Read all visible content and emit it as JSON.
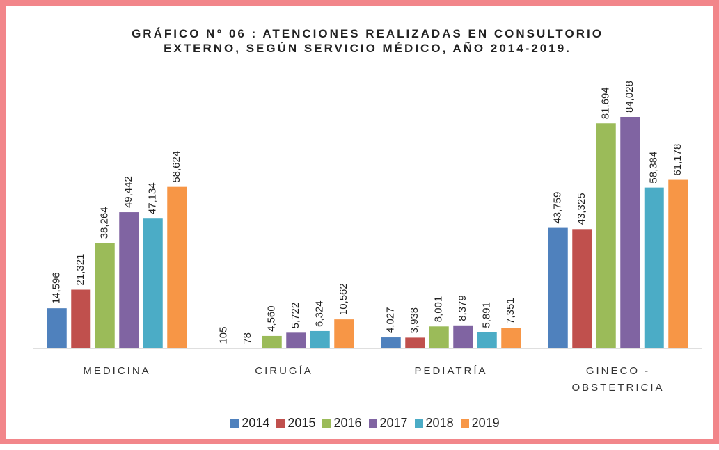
{
  "chart_data": {
    "type": "bar",
    "title": "GRÁFICO N° 06 : ATENCIONES REALIZADAS EN CONSULTORIO EXTERNO, SEGÚN SERVICIO MÉDICO, AÑO 2014-2019.",
    "categories": [
      "MEDICINA",
      "CIRUGÍA",
      "PEDIATRÍA",
      "GINECO - OBSTETRICIA"
    ],
    "series": [
      {
        "name": "2014",
        "color": "#4f81bd",
        "values": [
          14596,
          105,
          4027,
          43759
        ],
        "value_labels": [
          "14,596",
          "105",
          "4,027",
          "43,759"
        ]
      },
      {
        "name": "2015",
        "color": "#c0504d",
        "values": [
          21321,
          78,
          3938,
          43325
        ],
        "value_labels": [
          "21,321",
          "78",
          "3,938",
          "43,325"
        ]
      },
      {
        "name": "2016",
        "color": "#9bbb59",
        "values": [
          38264,
          4560,
          8001,
          81694
        ],
        "value_labels": [
          "38,264",
          "4,560",
          "8,001",
          "81,694"
        ]
      },
      {
        "name": "2017",
        "color": "#8064a2",
        "values": [
          49442,
          5722,
          8379,
          84028
        ],
        "value_labels": [
          "49,442",
          "5,722",
          "8,379",
          "84,028"
        ]
      },
      {
        "name": "2018",
        "color": "#4bacc6",
        "values": [
          47134,
          6324,
          5891,
          58384
        ],
        "value_labels": [
          "47,134",
          "6,324",
          "5,891",
          "58,384"
        ]
      },
      {
        "name": "2019",
        "color": "#f79646",
        "values": [
          58624,
          10562,
          7351,
          61178
        ],
        "value_labels": [
          "58,624",
          "10,562",
          "7,351",
          "61,178"
        ]
      }
    ]
  }
}
